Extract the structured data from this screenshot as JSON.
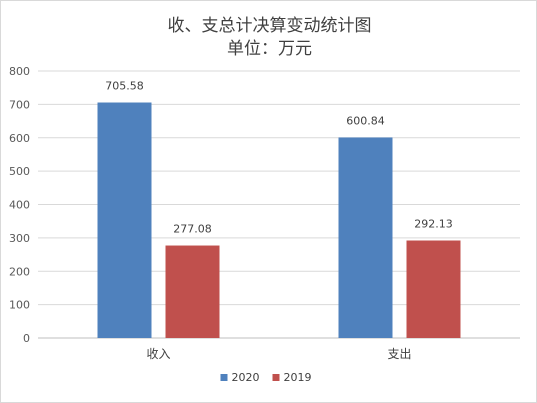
{
  "chart_data": {
    "type": "bar",
    "title": "收、支总计决算变动统计图",
    "subtitle": "单位：万元",
    "categories": [
      "收入",
      "支出"
    ],
    "series": [
      {
        "name": "2020",
        "values": [
          705.58,
          600.84
        ],
        "color": "#4f81bd"
      },
      {
        "name": "2019",
        "values": [
          277.08,
          292.13
        ],
        "color": "#c0504d"
      }
    ],
    "ylim": [
      0,
      800
    ],
    "yticks": [
      0,
      100,
      200,
      300,
      400,
      500,
      600,
      700,
      800
    ],
    "grid": true,
    "legend_position": "bottom"
  }
}
